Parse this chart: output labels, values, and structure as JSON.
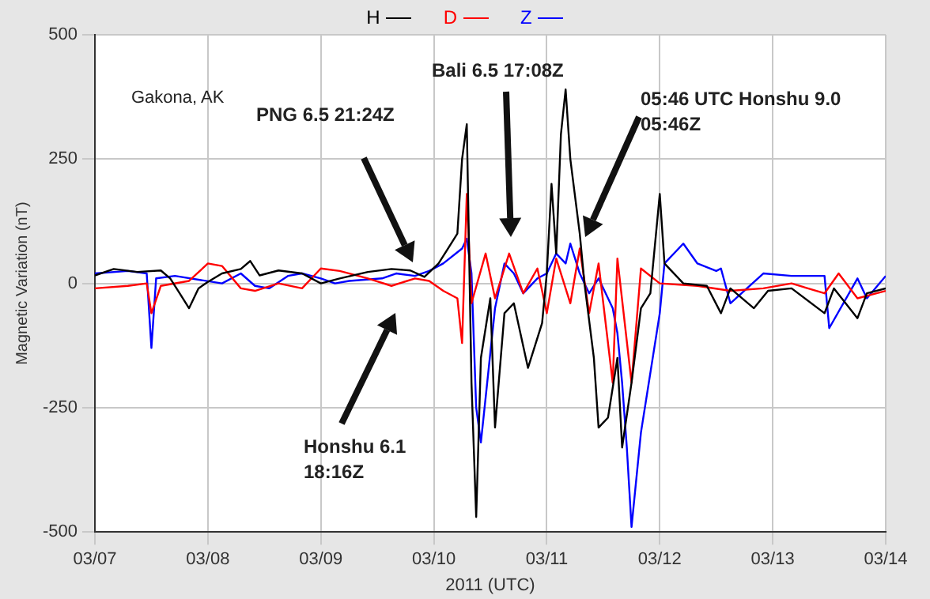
{
  "chart_data": {
    "type": "line",
    "xlabel": "2011 (UTC)",
    "ylabel": "Magnetic Variation (nT)",
    "xlim": [
      "2011-03-07",
      "2011-03-14"
    ],
    "xticks": [
      {
        "value": "2011-03-07",
        "label": "03/07"
      },
      {
        "value": "2011-03-08",
        "label": "03/08"
      },
      {
        "value": "2011-03-09",
        "label": "03/09"
      },
      {
        "value": "2011-03-10",
        "label": "03/10"
      },
      {
        "value": "2011-03-11",
        "label": "03/11"
      },
      {
        "value": "2011-03-12",
        "label": "03/12"
      },
      {
        "value": "2011-03-13",
        "label": "03/13"
      },
      {
        "value": "2011-03-14",
        "label": "03/14"
      }
    ],
    "ylim": [
      -500,
      500
    ],
    "yticks": [
      -500,
      -250,
      0,
      250,
      500
    ],
    "grid": true,
    "legend": "top",
    "marker": "none",
    "line_style": "solid",
    "annotations": [
      "Gakona, AK",
      "PNG 6.5 21:24Z",
      "Bali 6.5 17:08Z",
      "05:46 UTC Honshu 9.0\n05:46Z",
      "Honshu 6.1\n18:16Z"
    ],
    "series": [
      {
        "name": "H",
        "color": "#000000",
        "x": [
          "2011-03-07T00:00",
          "2011-03-07T04:00",
          "2011-03-07T09:00",
          "2011-03-07T14:00",
          "2011-03-07T16:00",
          "2011-03-07T18:00",
          "2011-03-07T20:00",
          "2011-03-07T22:00",
          "2011-03-08T00:00",
          "2011-03-08T03:00",
          "2011-03-08T07:00",
          "2011-03-08T09:00",
          "2011-03-08T11:00",
          "2011-03-08T15:00",
          "2011-03-08T20:00",
          "2011-03-09T00:00",
          "2011-03-09T04:00",
          "2011-03-09T10:00",
          "2011-03-09T15:00",
          "2011-03-09T19:00",
          "2011-03-09T22:00",
          "2011-03-10T01:00",
          "2011-03-10T03:00",
          "2011-03-10T05:00",
          "2011-03-10T06:00",
          "2011-03-10T07:00",
          "2011-03-10T08:00",
          "2011-03-10T09:00",
          "2011-03-10T10:00",
          "2011-03-10T12:00",
          "2011-03-10T13:00",
          "2011-03-10T15:00",
          "2011-03-10T17:00",
          "2011-03-10T20:00",
          "2011-03-10T23:00",
          "2011-03-11T00:00",
          "2011-03-11T01:00",
          "2011-03-11T02:00",
          "2011-03-11T03:00",
          "2011-03-11T04:00",
          "2011-03-11T05:00",
          "2011-03-11T07:00",
          "2011-03-11T08:00",
          "2011-03-11T10:00",
          "2011-03-11T11:00",
          "2011-03-11T13:00",
          "2011-03-11T15:00",
          "2011-03-11T16:00",
          "2011-03-11T18:00",
          "2011-03-11T20:00",
          "2011-03-11T22:00",
          "2011-03-12T00:00",
          "2011-03-12T01:00",
          "2011-03-12T05:00",
          "2011-03-12T10:00",
          "2011-03-12T13:00",
          "2011-03-12T15:00",
          "2011-03-12T20:00",
          "2011-03-12T23:00",
          "2011-03-13T04:00",
          "2011-03-13T11:00",
          "2011-03-13T13:00",
          "2011-03-13T18:00",
          "2011-03-13T20:00",
          "2011-03-14T00:00"
        ],
        "values": [
          16,
          29,
          23,
          26,
          10,
          -20,
          -50,
          -10,
          3,
          20,
          29,
          45,
          16,
          26,
          20,
          0,
          10,
          23,
          29,
          26,
          13,
          40,
          70,
          100,
          250,
          320,
          -200,
          -470,
          -150,
          -30,
          -290,
          -60,
          -40,
          -170,
          -80,
          20,
          200,
          60,
          300,
          390,
          250,
          100,
          0,
          -150,
          -290,
          -270,
          -150,
          -330,
          -200,
          -50,
          -20,
          180,
          40,
          0,
          -5,
          -60,
          -10,
          -50,
          -15,
          -10,
          -60,
          -10,
          -70,
          -20,
          -10
        ]
      },
      {
        "name": "D",
        "color": "#ff0000",
        "x": [
          "2011-03-07T00:00",
          "2011-03-07T07:00",
          "2011-03-07T11:00",
          "2011-03-07T12:00",
          "2011-03-07T14:00",
          "2011-03-07T20:00",
          "2011-03-08T00:00",
          "2011-03-08T03:00",
          "2011-03-08T07:00",
          "2011-03-08T10:00",
          "2011-03-08T15:00",
          "2011-03-08T20:00",
          "2011-03-09T00:00",
          "2011-03-09T04:00",
          "2011-03-09T10:00",
          "2011-03-09T15:00",
          "2011-03-09T20:00",
          "2011-03-09T23:00",
          "2011-03-10T02:00",
          "2011-03-10T05:00",
          "2011-03-10T06:00",
          "2011-03-10T07:00",
          "2011-03-10T08:00",
          "2011-03-10T11:00",
          "2011-03-10T13:00",
          "2011-03-10T16:00",
          "2011-03-10T19:00",
          "2011-03-10T22:00",
          "2011-03-11T00:00",
          "2011-03-11T02:00",
          "2011-03-11T05:00",
          "2011-03-11T07:00",
          "2011-03-11T09:00",
          "2011-03-11T11:00",
          "2011-03-11T14:00",
          "2011-03-11T15:00",
          "2011-03-11T18:00",
          "2011-03-11T20:00",
          "2011-03-12T00:00",
          "2011-03-12T08:00",
          "2011-03-12T15:00",
          "2011-03-12T22:00",
          "2011-03-13T04:00",
          "2011-03-13T11:00",
          "2011-03-13T14:00",
          "2011-03-13T18:00",
          "2011-03-14T00:00"
        ],
        "values": [
          -10,
          -5,
          0,
          -60,
          -5,
          5,
          40,
          35,
          -10,
          -15,
          0,
          -10,
          30,
          25,
          10,
          -5,
          10,
          5,
          -15,
          -30,
          -120,
          180,
          -40,
          60,
          -30,
          60,
          -20,
          30,
          -60,
          50,
          -40,
          70,
          -60,
          40,
          -200,
          50,
          -200,
          30,
          0,
          -5,
          -15,
          -10,
          0,
          -20,
          20,
          -30,
          -15
        ]
      },
      {
        "name": "Z",
        "color": "#0000ff",
        "x": [
          "2011-03-07T00:00",
          "2011-03-07T07:00",
          "2011-03-07T11:00",
          "2011-03-07T12:00",
          "2011-03-07T13:00",
          "2011-03-07T17:00",
          "2011-03-08T03:00",
          "2011-03-08T07:00",
          "2011-03-08T10:00",
          "2011-03-08T13:00",
          "2011-03-08T17:00",
          "2011-03-08T20:00",
          "2011-03-09T00:00",
          "2011-03-09T03:00",
          "2011-03-09T06:00",
          "2011-03-09T13:00",
          "2011-03-09T16:00",
          "2011-03-09T20:00",
          "2011-03-09T23:00",
          "2011-03-10T02:00",
          "2011-03-10T06:00",
          "2011-03-10T07:00",
          "2011-03-10T08:00",
          "2011-03-10T09:00",
          "2011-03-10T10:00",
          "2011-03-10T13:00",
          "2011-03-10T15:00",
          "2011-03-10T17:00",
          "2011-03-10T19:00",
          "2011-03-10T22:00",
          "2011-03-11T00:00",
          "2011-03-11T02:00",
          "2011-03-11T04:00",
          "2011-03-11T05:00",
          "2011-03-11T07:00",
          "2011-03-11T09:00",
          "2011-03-11T11:00",
          "2011-03-11T14:00",
          "2011-03-11T15:00",
          "2011-03-11T16:00",
          "2011-03-11T17:00",
          "2011-03-11T18:00",
          "2011-03-11T20:00",
          "2011-03-12T00:00",
          "2011-03-12T01:00",
          "2011-03-12T05:00",
          "2011-03-12T08:00",
          "2011-03-12T12:00",
          "2011-03-12T13:00",
          "2011-03-12T15:00",
          "2011-03-12T22:00",
          "2011-03-13T04:00",
          "2011-03-13T10:00",
          "2011-03-13T11:00",
          "2011-03-13T12:00",
          "2011-03-13T18:00",
          "2011-03-13T20:00",
          "2011-03-14T00:00"
        ],
        "values": [
          20,
          25,
          20,
          -130,
          10,
          15,
          0,
          20,
          -5,
          -10,
          15,
          20,
          10,
          0,
          5,
          10,
          20,
          15,
          25,
          40,
          70,
          90,
          20,
          -250,
          -320,
          -50,
          40,
          20,
          -20,
          10,
          20,
          60,
          40,
          80,
          20,
          -20,
          10,
          -50,
          -100,
          -200,
          -330,
          -490,
          -300,
          -60,
          40,
          80,
          40,
          25,
          30,
          -40,
          20,
          15,
          15,
          15,
          -90,
          10,
          -30,
          15
        ]
      }
    ]
  }
}
